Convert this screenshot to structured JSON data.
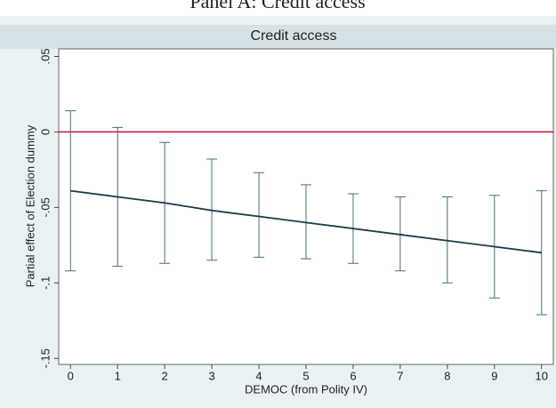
{
  "panel_title": "Panel A: Credit access",
  "chart_data": {
    "type": "line",
    "title": "Credit access",
    "x_label": "DEMOC (from Polity IV)",
    "y_label": "Partial effect of Election dummy",
    "x": [
      0,
      1,
      2,
      3,
      4,
      5,
      6,
      7,
      8,
      9,
      10
    ],
    "values": [
      -0.039,
      -0.043,
      -0.047,
      -0.052,
      -0.056,
      -0.06,
      -0.064,
      -0.068,
      -0.072,
      -0.076,
      -0.08
    ],
    "lower": [
      -0.092,
      -0.089,
      -0.087,
      -0.085,
      -0.083,
      -0.084,
      -0.087,
      -0.092,
      -0.1,
      -0.11,
      -0.121
    ],
    "upper": [
      0.014,
      0.003,
      -0.007,
      -0.018,
      -0.027,
      -0.035,
      -0.041,
      -0.043,
      -0.043,
      -0.042,
      -0.039
    ],
    "color": "#1a3a4a",
    "error_color": "#4a6b7c",
    "reference_line": 0,
    "reference_color": "#c0163c",
    "xlim": [
      -0.25,
      10.25
    ],
    "xticks": [
      0,
      1,
      2,
      3,
      4,
      5,
      6,
      7,
      8,
      9,
      10
    ],
    "ylim": [
      -0.154,
      0.055
    ],
    "yticks": [
      {
        "value": 0.05,
        "label": ".05"
      },
      0,
      {
        "value": -0.05,
        "label": "-.05"
      },
      {
        "value": -0.1,
        "label": "-.1"
      },
      {
        "value": -0.15,
        "label": "-.15"
      }
    ]
  }
}
